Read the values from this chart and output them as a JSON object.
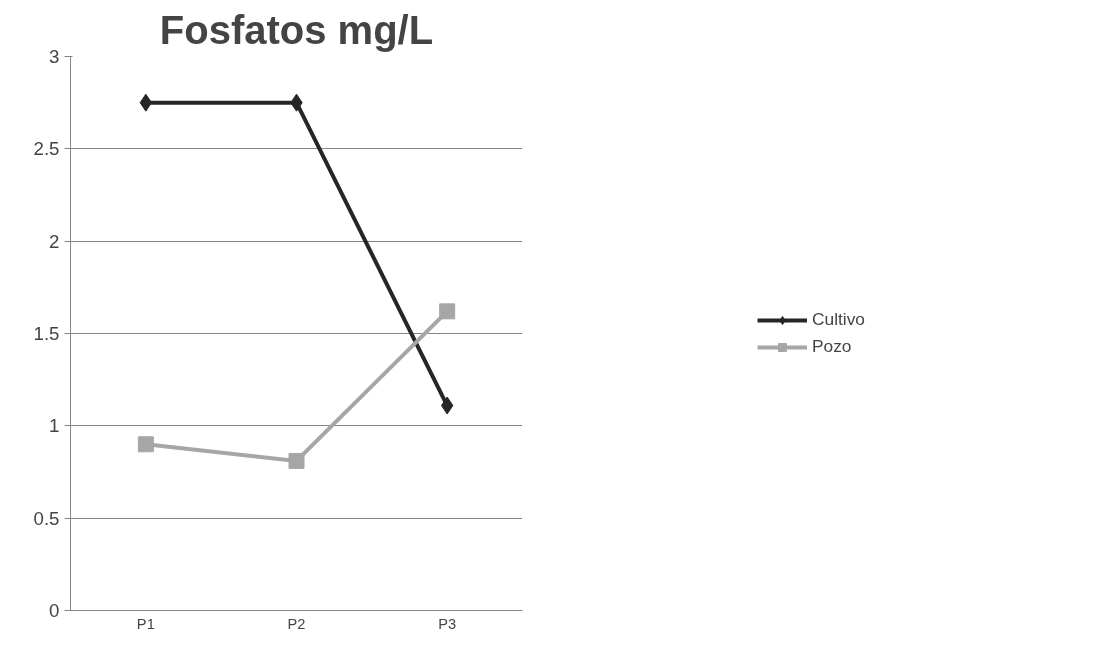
{
  "chart_data": {
    "type": "line",
    "title": "Fosfatos mg/L",
    "categories": [
      "P1",
      "P2",
      "P3"
    ],
    "series": [
      {
        "name": "Cultivo",
        "color": "#262626",
        "marker": "diamond",
        "values": [
          2.75,
          2.75,
          1.11
        ]
      },
      {
        "name": "Pozo",
        "color": "#a6a6a6",
        "marker": "square",
        "values": [
          0.9,
          0.81,
          1.62
        ]
      }
    ],
    "ylim": [
      0,
      3
    ],
    "yticks": [
      0,
      0.5,
      1,
      1.5,
      2,
      2.5,
      3
    ],
    "grid": "y",
    "legend": "right"
  }
}
